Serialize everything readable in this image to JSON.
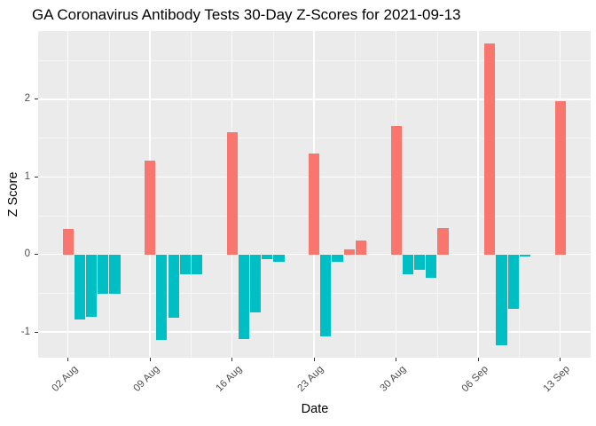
{
  "chart_data": {
    "type": "bar",
    "title": "GA Coronavirus Antibody Tests 30-Day Z-Scores for 2021-09-13",
    "xlabel": "Date",
    "ylabel": "Z Score",
    "x_tick_labels": [
      "02 Aug",
      "09 Aug",
      "16 Aug",
      "23 Aug",
      "30 Aug",
      "06 Sep",
      "13 Sep"
    ],
    "x_tick_days": [
      0,
      7,
      14,
      21,
      28,
      35,
      42
    ],
    "y_ticks": [
      -1,
      0,
      1,
      2
    ],
    "y_minor_ticks": [
      -0.5,
      0.5,
      1.5,
      2.5
    ],
    "ylim": [
      -1.33,
      2.88
    ],
    "xlim_days": [
      -2.55,
      44.6
    ],
    "grid": true,
    "legend": "none",
    "colors": {
      "positive": "#F8766D",
      "negative": "#00BFC4"
    },
    "panel_bg": "#EBEBEB",
    "grid_color": "#FFFFFF",
    "tick_text_color": "#4D4D4D",
    "bars": [
      {
        "label": "02 Aug",
        "day": 0,
        "value": 0.33
      },
      {
        "label": "03 Aug",
        "day": 1,
        "value": -0.84
      },
      {
        "label": "04 Aug",
        "day": 2,
        "value": -0.8
      },
      {
        "label": "05 Aug",
        "day": 3,
        "value": -0.51
      },
      {
        "label": "06 Aug",
        "day": 4,
        "value": -0.51
      },
      {
        "label": "09 Aug",
        "day": 7,
        "value": 1.21
      },
      {
        "label": "10 Aug",
        "day": 8,
        "value": -1.1
      },
      {
        "label": "11 Aug",
        "day": 9,
        "value": -0.82
      },
      {
        "label": "12 Aug",
        "day": 10,
        "value": -0.25
      },
      {
        "label": "13 Aug",
        "day": 11,
        "value": -0.25
      },
      {
        "label": "16 Aug",
        "day": 14,
        "value": 1.58
      },
      {
        "label": "17 Aug",
        "day": 15,
        "value": -1.09
      },
      {
        "label": "18 Aug",
        "day": 16,
        "value": -0.75
      },
      {
        "label": "19 Aug",
        "day": 17,
        "value": -0.06
      },
      {
        "label": "20 Aug",
        "day": 18,
        "value": -0.1
      },
      {
        "label": "23 Aug",
        "day": 21,
        "value": 1.3
      },
      {
        "label": "24 Aug",
        "day": 22,
        "value": -1.06
      },
      {
        "label": "25 Aug",
        "day": 23,
        "value": -0.09
      },
      {
        "label": "26 Aug",
        "day": 24,
        "value": 0.06
      },
      {
        "label": "27 Aug",
        "day": 25,
        "value": 0.18
      },
      {
        "label": "30 Aug",
        "day": 28,
        "value": 1.66
      },
      {
        "label": "31 Aug",
        "day": 29,
        "value": -0.26
      },
      {
        "label": "01 Sep",
        "day": 30,
        "value": -0.2
      },
      {
        "label": "02 Sep",
        "day": 31,
        "value": -0.3
      },
      {
        "label": "03 Sep",
        "day": 32,
        "value": 0.34
      },
      {
        "label": "07 Sep",
        "day": 36,
        "value": 2.72
      },
      {
        "label": "08 Sep",
        "day": 37,
        "value": -1.17
      },
      {
        "label": "09 Sep",
        "day": 38,
        "value": -0.7
      },
      {
        "label": "10 Sep",
        "day": 39,
        "value": -0.03
      },
      {
        "label": "13 Sep",
        "day": 42,
        "value": 1.98
      }
    ]
  }
}
